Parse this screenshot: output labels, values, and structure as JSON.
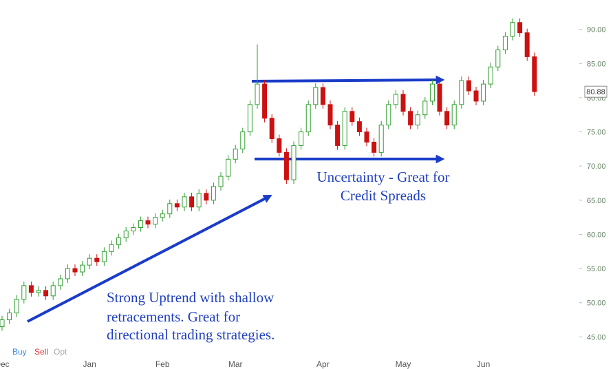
{
  "chart_data": {
    "type": "candlestick",
    "categories": [
      "Dec",
      null,
      null,
      null,
      null,
      null,
      null,
      null,
      null,
      null,
      null,
      null,
      "Jan",
      null,
      null,
      null,
      null,
      null,
      null,
      null,
      null,
      null,
      "Feb",
      null,
      null,
      null,
      null,
      null,
      null,
      null,
      null,
      null,
      "Mar",
      null,
      null,
      null,
      null,
      null,
      null,
      null,
      null,
      null,
      null,
      null,
      "Apr",
      null,
      null,
      null,
      null,
      null,
      null,
      null,
      null,
      null,
      null,
      "May",
      null,
      null,
      null,
      null,
      null,
      null,
      null,
      null,
      null,
      null,
      "Jun",
      null,
      null,
      null,
      null,
      null,
      null,
      null
    ],
    "open": [
      46.5,
      47.5,
      48.5,
      50.5,
      52.5,
      51.5,
      51.8,
      51.0,
      52.5,
      53.5,
      55.0,
      54.5,
      55.5,
      56.5,
      56.0,
      57.5,
      58.5,
      59.5,
      60.5,
      61.0,
      62.0,
      61.5,
      62.5,
      63.0,
      64.5,
      64.0,
      65.5,
      64.0,
      66.0,
      65.0,
      67.0,
      68.5,
      71.0,
      72.5,
      75.0,
      79.0,
      82.0,
      77.0,
      74.0,
      72.0,
      68.0,
      73.0,
      75.0,
      79.0,
      81.5,
      79.0,
      76.0,
      73.0,
      78.0,
      76.5,
      75.0,
      73.5,
      72.0,
      76.0,
      79.0,
      80.5,
      78.0,
      76.0,
      77.5,
      79.5,
      82.0,
      78.0,
      76.0,
      79.0,
      82.5,
      81.0,
      79.5,
      82.0,
      84.5,
      87.0,
      89.0,
      91.0,
      89.5,
      86.0
    ],
    "high": [
      48.1,
      49.1,
      51.1,
      53.1,
      53.1,
      52.4,
      52.4,
      53.1,
      54.1,
      55.6,
      55.6,
      56.1,
      57.1,
      57.1,
      58.1,
      59.1,
      60.1,
      61.1,
      61.6,
      62.6,
      62.6,
      63.1,
      63.6,
      65.1,
      65.1,
      66.1,
      66.1,
      66.6,
      66.6,
      67.6,
      69.1,
      71.6,
      73.1,
      75.6,
      79.6,
      87.8,
      82.6,
      77.6,
      74.6,
      72.6,
      73.6,
      75.6,
      79.6,
      82.1,
      82.1,
      79.6,
      76.6,
      78.6,
      78.6,
      77.1,
      75.6,
      74.1,
      76.6,
      79.6,
      81.1,
      81.1,
      78.6,
      78.1,
      80.1,
      82.6,
      82.6,
      78.6,
      79.6,
      83.1,
      83.1,
      81.6,
      82.6,
      85.1,
      87.6,
      89.6,
      91.6,
      91.6,
      90.1,
      86.6
    ],
    "low": [
      45.9,
      46.9,
      47.9,
      49.9,
      50.9,
      50.9,
      50.4,
      50.4,
      51.9,
      52.9,
      53.9,
      53.9,
      54.9,
      55.4,
      55.4,
      56.9,
      57.9,
      58.9,
      59.9,
      60.4,
      60.9,
      60.9,
      61.9,
      62.4,
      63.4,
      63.4,
      63.4,
      63.4,
      64.4,
      64.4,
      66.4,
      67.9,
      70.4,
      71.9,
      74.4,
      78.4,
      76.4,
      73.4,
      71.4,
      67.4,
      67.4,
      72.4,
      74.4,
      78.4,
      78.4,
      75.4,
      72.4,
      72.4,
      75.9,
      74.4,
      72.9,
      71.4,
      71.4,
      75.4,
      78.4,
      77.4,
      75.4,
      75.4,
      76.9,
      78.9,
      77.4,
      75.4,
      75.4,
      78.4,
      80.4,
      78.9,
      78.9,
      81.4,
      83.9,
      86.4,
      88.4,
      88.9,
      85.4,
      80.3
    ],
    "close": [
      47.5,
      48.5,
      50.5,
      52.5,
      51.5,
      51.8,
      51.0,
      52.5,
      53.5,
      55.0,
      54.5,
      55.5,
      56.5,
      56.0,
      57.5,
      58.5,
      59.5,
      60.5,
      61.0,
      62.0,
      61.5,
      62.5,
      63.0,
      64.5,
      64.0,
      65.5,
      64.0,
      66.0,
      65.0,
      67.0,
      68.5,
      71.0,
      72.5,
      75.0,
      79.0,
      82.0,
      77.0,
      74.0,
      72.0,
      68.0,
      73.0,
      75.0,
      79.0,
      81.5,
      79.0,
      76.0,
      73.0,
      78.0,
      76.5,
      75.0,
      73.5,
      72.0,
      76.0,
      79.0,
      80.5,
      78.0,
      76.0,
      77.5,
      79.5,
      82.0,
      78.0,
      76.0,
      79.0,
      82.5,
      81.0,
      79.5,
      82.0,
      84.5,
      87.0,
      89.0,
      91.0,
      89.5,
      86.0,
      80.9
    ],
    "up_color": "#2e9e2e",
    "down_color": "#cc1111",
    "ylim": [
      40.3,
      94.3
    ],
    "yticks": [
      {
        "value": 45,
        "label": "45.00"
      },
      {
        "value": 50,
        "label": "50.00"
      },
      {
        "value": 55,
        "label": "55.00"
      },
      {
        "value": 60,
        "label": "60.00"
      },
      {
        "value": 65,
        "label": "65.00"
      },
      {
        "value": 70,
        "label": "70.00"
      },
      {
        "value": 75,
        "label": "75.00"
      },
      {
        "value": 80,
        "label": "80.00"
      },
      {
        "value": 85,
        "label": "85.00"
      },
      {
        "value": 90,
        "label": "90.00"
      }
    ],
    "last_price": 80.88,
    "annotations": [
      "Uncertainty - Great for",
      "Credit Spreads",
      "Strong Uptrend with shallow",
      "retracements. Great for",
      "directional trading strategies."
    ]
  },
  "toolbar": [
    "Buy",
    "Sell",
    "Opt"
  ]
}
